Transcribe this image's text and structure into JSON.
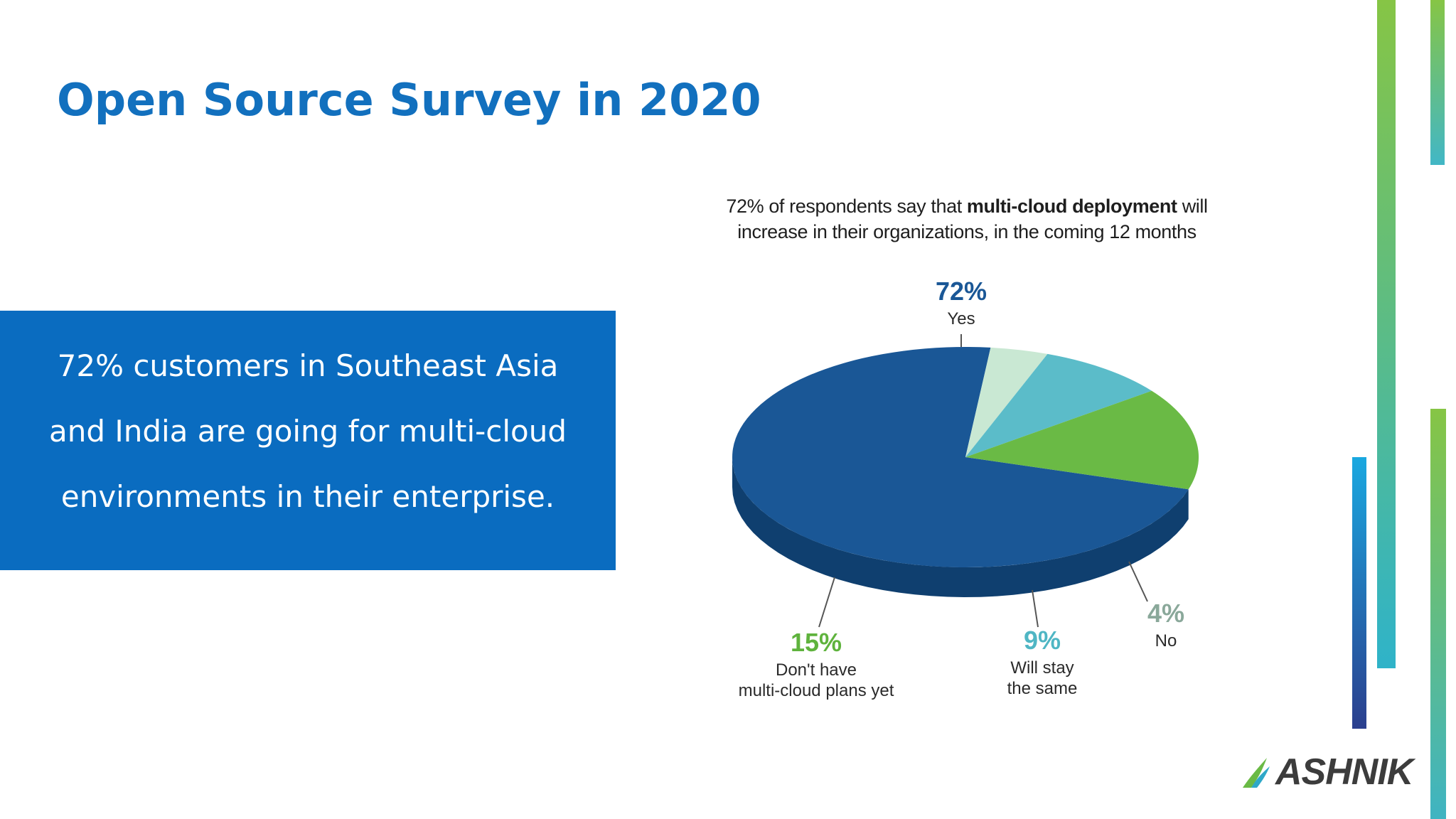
{
  "slide": {
    "title": "Open Source Survey in 2020",
    "callout_lines": [
      "72% customers in Southeast Asia",
      "and India are going for multi-cloud",
      "environments in their enterprise."
    ]
  },
  "brand": {
    "logo_text": "ASHNIK"
  },
  "colors": {
    "title": "#1270be",
    "callout_bg": "#0a6cc0"
  },
  "chart_data": {
    "type": "pie",
    "heading": {
      "part1": "72% of respondents say that ",
      "bold": "multi-cloud deployment",
      "part2": " will",
      "line2": "increase in their organizations, in the coming 12 months"
    },
    "slices": [
      {
        "value": 72,
        "pct_label": "72%",
        "label_lines": [
          "Yes"
        ],
        "color": "#1a5796",
        "side": "#0f3f6f",
        "text_color": "#1a5796"
      },
      {
        "value": 4,
        "pct_label": "4%",
        "label_lines": [
          "No"
        ],
        "color": "#c9e8d3",
        "side": "#8fb4a0",
        "text_color": "#8aa89a"
      },
      {
        "value": 9,
        "pct_label": "9%",
        "label_lines": [
          "Will stay",
          "the same"
        ],
        "color": "#5bbcc9",
        "side": "#2f8696",
        "text_color": "#4fb6c4"
      },
      {
        "value": 15,
        "pct_label": "15%",
        "label_lines": [
          "Don't have",
          "multi-cloud plans yet"
        ],
        "color": "#6aba45",
        "side": "#3e7f2a",
        "text_color": "#5fb33d"
      }
    ]
  }
}
